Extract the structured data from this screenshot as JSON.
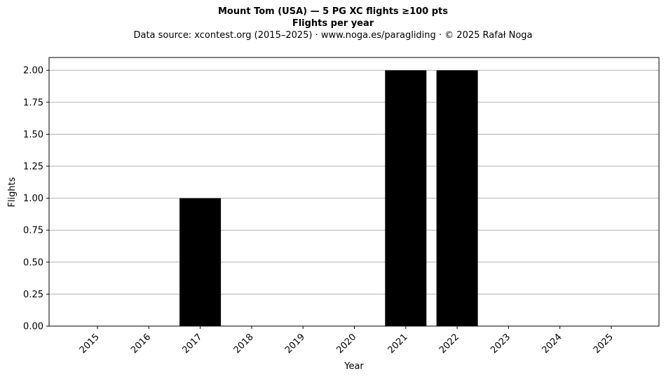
{
  "chart_data": {
    "type": "bar",
    "title": "Mount Tom (USA)  —  5 PG XC flights ≥100 pts",
    "subtitle": "Flights per year",
    "source_note": "Data source: xcontest.org (2015–2025)  ·  www.noga.es/paragliding  ·  © 2025 Rafał Noga",
    "xlabel": "Year",
    "ylabel": "Flights",
    "categories": [
      "2015",
      "2016",
      "2017",
      "2018",
      "2019",
      "2020",
      "2021",
      "2022",
      "2023",
      "2024",
      "2025"
    ],
    "values": [
      0,
      0,
      1,
      0,
      0,
      0,
      2,
      2,
      0,
      0,
      0
    ],
    "ylim": [
      0,
      2.1
    ],
    "yticks": [
      "0.00",
      "0.25",
      "0.50",
      "0.75",
      "1.00",
      "1.25",
      "1.50",
      "1.75",
      "2.00"
    ],
    "grid": "horizontal",
    "bar_color": "#000000",
    "grid_color": "#b0b0b0"
  }
}
